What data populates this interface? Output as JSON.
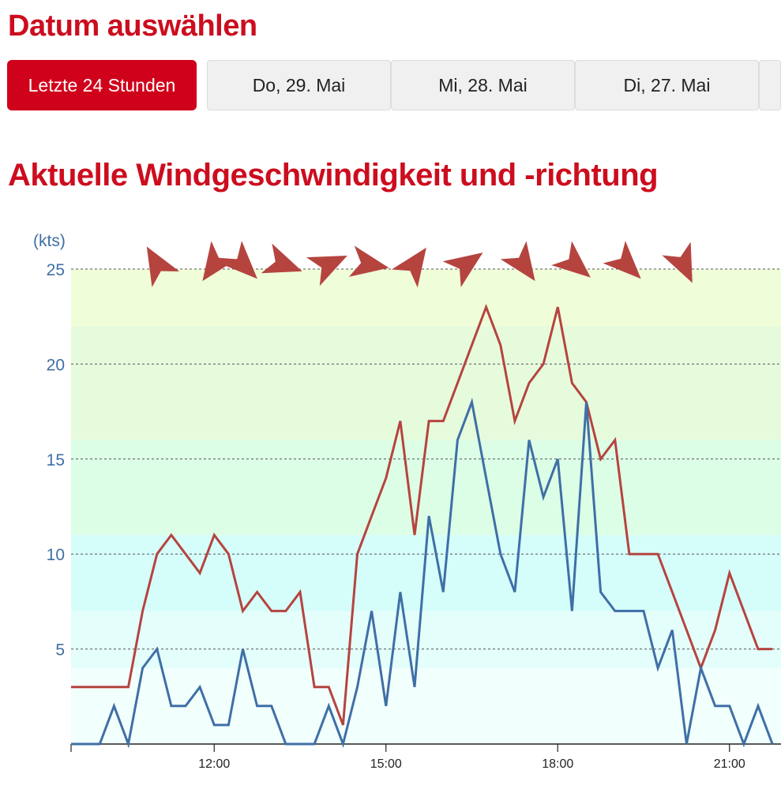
{
  "header": {
    "title": "Datum auswählen"
  },
  "date_tabs": [
    {
      "label": "Letzte 24 Stunden",
      "active": true
    },
    {
      "label": "Do, 29. Mai",
      "active": false
    },
    {
      "label": "Mi, 28. Mai",
      "active": false
    },
    {
      "label": "Di, 27. Mai",
      "active": false
    },
    {
      "label": "",
      "active": false
    }
  ],
  "section": {
    "title": "Aktuelle Windgeschwindigkeit und -richtung"
  },
  "colors": {
    "accent": "#d0021b",
    "gust_line": "#b5443f",
    "mean_line": "#3f6fa6",
    "arrow": "#b5443f"
  },
  "chart_data": {
    "type": "line",
    "ylabel": "(kts)",
    "ylim": [
      0,
      25
    ],
    "yticks": [
      5,
      10,
      15,
      20,
      25
    ],
    "xticks": [
      {
        "t": 12,
        "label": "12:00"
      },
      {
        "t": 15,
        "label": "15:00"
      },
      {
        "t": 18,
        "label": "18:00"
      },
      {
        "t": 21,
        "label": "21:00"
      }
    ],
    "xlim": [
      9.5,
      21.75
    ],
    "grid": true,
    "background_bands": [
      {
        "from": 0,
        "to": 4,
        "color": "#f1fffd"
      },
      {
        "from": 4,
        "to": 7,
        "color": "#e3fefb"
      },
      {
        "from": 7,
        "to": 11,
        "color": "#d5fdfa"
      },
      {
        "from": 11,
        "to": 16,
        "color": "#dcfde6"
      },
      {
        "from": 16,
        "to": 22,
        "color": "#e6fbdc"
      },
      {
        "from": 22,
        "to": 25,
        "color": "#effdd8"
      }
    ],
    "series": [
      {
        "key": "gusts",
        "color": "#b5443f",
        "x": [
          9.5,
          9.75,
          10.0,
          10.25,
          10.5,
          10.75,
          11.0,
          11.25,
          11.5,
          11.75,
          12.0,
          12.25,
          12.5,
          12.75,
          13.0,
          13.25,
          13.5,
          13.75,
          14.0,
          14.25,
          14.5,
          14.75,
          15.0,
          15.25,
          15.5,
          15.75,
          16.0,
          16.25,
          16.5,
          16.75,
          17.0,
          17.25,
          17.5,
          17.75,
          18.0,
          18.25,
          18.5,
          18.75,
          19.0,
          19.25,
          19.5,
          19.75,
          20.0,
          20.25,
          20.5,
          20.75,
          21.0,
          21.25,
          21.5,
          21.75
        ],
        "values": [
          3,
          3,
          3,
          3,
          3,
          7,
          10,
          11,
          10,
          9,
          11,
          10,
          7,
          8,
          7,
          7,
          8,
          3,
          3,
          1,
          10,
          12,
          14,
          17,
          11,
          17,
          17,
          19,
          21,
          23,
          21,
          17,
          19,
          20,
          23,
          19,
          18,
          15,
          16,
          10,
          10,
          10,
          8,
          6,
          4,
          6,
          9,
          7,
          5,
          5
        ]
      },
      {
        "key": "mean",
        "color": "#3f6fa6",
        "x": [
          9.5,
          9.75,
          10.0,
          10.25,
          10.5,
          10.75,
          11.0,
          11.25,
          11.5,
          11.75,
          12.0,
          12.25,
          12.5,
          12.75,
          13.0,
          13.25,
          13.5,
          13.75,
          14.0,
          14.25,
          14.5,
          14.75,
          15.0,
          15.25,
          15.5,
          15.75,
          16.0,
          16.25,
          16.5,
          16.75,
          17.0,
          17.25,
          17.5,
          17.75,
          18.0,
          18.25,
          18.5,
          18.75,
          19.0,
          19.25,
          19.5,
          19.75,
          20.0,
          20.25,
          20.5,
          20.75,
          21.0,
          21.25,
          21.5,
          21.75
        ],
        "values": [
          0,
          0,
          0,
          2,
          0,
          4,
          5,
          2,
          2,
          3,
          1,
          1,
          5,
          2,
          2,
          0,
          0,
          0,
          2,
          0,
          3,
          7,
          2,
          8,
          3,
          12,
          8,
          16,
          18,
          14,
          10,
          8,
          16,
          13,
          15,
          7,
          18,
          8,
          7,
          7,
          7,
          4,
          6,
          0,
          4,
          2,
          2,
          0,
          2,
          0
        ]
      }
    ],
    "direction_arrows": [
      {
        "t": 11.0,
        "deg": 240
      },
      {
        "t": 12.0,
        "deg": 125
      },
      {
        "t": 12.5,
        "deg": 45
      },
      {
        "t": 13.2,
        "deg": 20
      },
      {
        "t": 14.0,
        "deg": 335
      },
      {
        "t": 14.7,
        "deg": 10
      },
      {
        "t": 15.5,
        "deg": 305
      },
      {
        "t": 16.4,
        "deg": 325
      },
      {
        "t": 17.4,
        "deg": 55
      },
      {
        "t": 18.3,
        "deg": 40
      },
      {
        "t": 19.2,
        "deg": 45
      },
      {
        "t": 20.2,
        "deg": 65
      }
    ]
  }
}
